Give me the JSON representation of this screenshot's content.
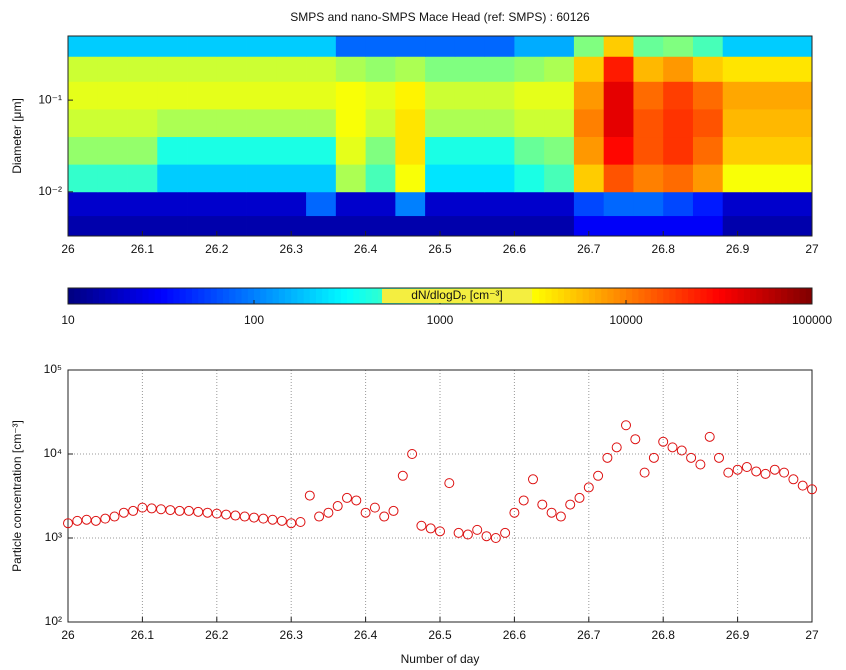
{
  "chart_data": [
    {
      "type": "heatmap",
      "title": "SMPS and nano-SMPS Mace Head (ref: SMPS) : 60126",
      "ylabel": "Diameter  [μm]",
      "xlim": [
        26,
        27
      ],
      "xticks": [
        26,
        26.1,
        26.2,
        26.3,
        26.4,
        26.5,
        26.6,
        26.7,
        26.8,
        26.9,
        27
      ],
      "ylim": [
        0.0033,
        0.5
      ],
      "yticks": [
        {
          "value": 0.01,
          "label": "10⁻²"
        },
        {
          "value": 0.1,
          "label": "10⁻¹"
        }
      ],
      "ylog": true,
      "colormap": "jet",
      "clim": [
        10,
        100000
      ],
      "colorbar_ticks": [
        10,
        100,
        1000,
        10000,
        100000
      ],
      "colorbar_label": "dN/dlogDₚ [cm⁻³]",
      "x_bins": [
        26,
        26.04,
        26.08,
        26.12,
        26.16,
        26.2,
        26.24,
        26.28,
        26.32,
        26.36,
        26.4,
        26.44,
        26.48,
        26.52,
        26.56,
        26.6,
        26.64,
        26.68,
        26.72,
        26.76,
        26.8,
        26.84,
        26.88,
        26.92,
        26.96,
        27
      ],
      "y_bins": [
        0.0033,
        0.0055,
        0.01,
        0.02,
        0.04,
        0.08,
        0.16,
        0.3,
        0.5
      ],
      "values": [
        [
          15,
          15,
          15,
          15,
          15,
          15,
          15,
          15,
          15,
          15,
          15,
          15,
          15,
          15,
          15,
          15,
          15,
          30,
          30,
          30,
          30,
          30,
          15,
          15,
          15
        ],
        [
          20,
          20,
          20,
          20,
          20,
          20,
          20,
          20,
          80,
          20,
          20,
          100,
          20,
          20,
          20,
          20,
          20,
          60,
          80,
          80,
          60,
          40,
          20,
          20,
          20
        ],
        [
          500,
          500,
          500,
          200,
          200,
          200,
          200,
          200,
          200,
          1500,
          600,
          3000,
          250,
          250,
          250,
          400,
          600,
          5000,
          15000,
          10000,
          12000,
          8000,
          3000,
          3000,
          3000
        ],
        [
          1200,
          1200,
          1200,
          400,
          400,
          400,
          400,
          400,
          400,
          2500,
          1000,
          4000,
          400,
          400,
          400,
          800,
          1000,
          8000,
          30000,
          15000,
          20000,
          12000,
          5000,
          5000,
          5000
        ],
        [
          2000,
          2000,
          2000,
          1500,
          1500,
          1500,
          1500,
          1500,
          1500,
          3000,
          2000,
          4000,
          1500,
          1500,
          1500,
          2000,
          2000,
          10000,
          40000,
          15000,
          20000,
          15000,
          6000,
          6000,
          6000
        ],
        [
          2500,
          2500,
          2500,
          2500,
          2500,
          2500,
          2500,
          2500,
          2500,
          3000,
          2500,
          3500,
          2000,
          2000,
          2000,
          2500,
          2500,
          8000,
          40000,
          12000,
          18000,
          12000,
          7000,
          7000,
          7000
        ],
        [
          2000,
          2000,
          2000,
          2000,
          2000,
          2000,
          2000,
          2000,
          2000,
          1500,
          1200,
          1500,
          1000,
          1000,
          1000,
          1200,
          1500,
          5000,
          25000,
          6000,
          8000,
          5000,
          4000,
          4000,
          4000
        ],
        [
          200,
          200,
          200,
          200,
          200,
          200,
          200,
          200,
          200,
          80,
          80,
          80,
          80,
          80,
          80,
          150,
          150,
          1000,
          5000,
          800,
          1000,
          600,
          200,
          200,
          200
        ]
      ]
    },
    {
      "type": "scatter",
      "xlabel": "Number of day",
      "ylabel": "Particle concentration [cm⁻³]",
      "xlim": [
        26,
        27
      ],
      "xticks": [
        26,
        26.1,
        26.2,
        26.3,
        26.4,
        26.5,
        26.6,
        26.7,
        26.8,
        26.9,
        27
      ],
      "ylim": [
        100,
        100000
      ],
      "yticks": [
        {
          "value": 100,
          "label": "10²"
        },
        {
          "value": 1000,
          "label": "10³"
        },
        {
          "value": 10000,
          "label": "10⁴"
        },
        {
          "value": 100000,
          "label": "10⁵"
        }
      ],
      "ylog": true,
      "grid": true,
      "color": "#dd1111",
      "x": [
        26,
        26.0125,
        26.025,
        26.0375,
        26.05,
        26.0625,
        26.075,
        26.0875,
        26.1,
        26.1125,
        26.125,
        26.1375,
        26.15,
        26.1625,
        26.175,
        26.1875,
        26.2,
        26.2125,
        26.225,
        26.2375,
        26.25,
        26.2625,
        26.275,
        26.2875,
        26.3,
        26.3125,
        26.325,
        26.3375,
        26.35,
        26.3625,
        26.375,
        26.3875,
        26.4,
        26.4125,
        26.425,
        26.4375,
        26.45,
        26.4625,
        26.475,
        26.4875,
        26.5,
        26.5125,
        26.525,
        26.5375,
        26.55,
        26.5625,
        26.575,
        26.5875,
        26.6,
        26.6125,
        26.625,
        26.6375,
        26.65,
        26.6625,
        26.675,
        26.6875,
        26.7,
        26.7125,
        26.725,
        26.7375,
        26.75,
        26.7625,
        26.775,
        26.7875,
        26.8,
        26.8125,
        26.825,
        26.8375,
        26.85,
        26.8625,
        26.875,
        26.8875,
        26.9,
        26.9125,
        26.925,
        26.9375,
        26.95,
        26.9625,
        26.975,
        26.9875,
        27
      ],
      "values": [
        1500,
        1600,
        1650,
        1600,
        1700,
        1800,
        2000,
        2100,
        2300,
        2250,
        2200,
        2150,
        2100,
        2100,
        2050,
        2000,
        1950,
        1900,
        1850,
        1800,
        1750,
        1700,
        1650,
        1600,
        1500,
        1550,
        3200,
        1800,
        2000,
        2400,
        3000,
        2800,
        2000,
        2300,
        1800,
        2100,
        5500,
        10000,
        1400,
        1300,
        1200,
        4500,
        1150,
        1100,
        1250,
        1050,
        1000,
        1150,
        2000,
        2800,
        5000,
        2500,
        2000,
        1800,
        2500,
        3000,
        4000,
        5500,
        9000,
        12000,
        22000,
        15000,
        6000,
        9000,
        14000,
        12000,
        11000,
        9000,
        7500,
        16000,
        9000,
        6000,
        6500,
        7000,
        6200,
        5800,
        6500,
        6000,
        5000,
        4200,
        3800
      ]
    }
  ]
}
